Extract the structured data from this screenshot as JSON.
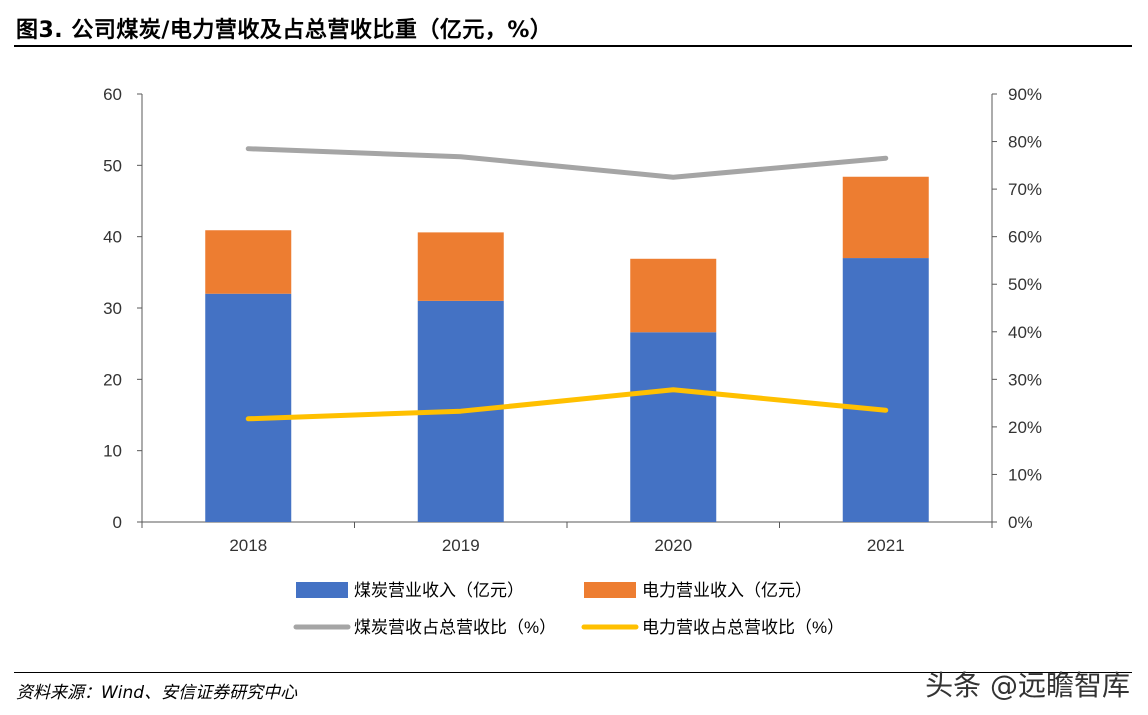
{
  "header": {
    "title": "图3. 公司煤炭/电力营收及占总营收比重（亿元，%）"
  },
  "chart_data": {
    "type": "bar",
    "stacked": true,
    "categories": [
      "2018",
      "2019",
      "2020",
      "2021"
    ],
    "series": [
      {
        "name": "煤炭营业收入（亿元）",
        "kind": "bar",
        "axis": "left",
        "color": "#4472C4",
        "values": [
          32.0,
          31.0,
          26.6,
          37.0
        ]
      },
      {
        "name": "电力营业收入（亿元）",
        "kind": "bar",
        "axis": "left",
        "color": "#ED7D31",
        "values": [
          8.9,
          9.6,
          10.3,
          11.4
        ]
      },
      {
        "name": "煤炭营收占总营收比（%）",
        "kind": "line",
        "axis": "right",
        "color": "#A5A5A5",
        "values": [
          78.5,
          76.8,
          72.5,
          76.5
        ]
      },
      {
        "name": "电力营收占总营收比（%）",
        "kind": "line",
        "axis": "right",
        "color": "#FFC000",
        "values": [
          21.7,
          23.3,
          27.8,
          23.5
        ]
      }
    ],
    "y_left": {
      "ylim": [
        0,
        60
      ],
      "ticks": [
        0,
        10,
        20,
        30,
        40,
        50,
        60
      ],
      "tick_labels": [
        "0",
        "10",
        "20",
        "30",
        "40",
        "50",
        "60"
      ]
    },
    "y_right": {
      "ylim": [
        0,
        90
      ],
      "ticks": [
        0,
        10,
        20,
        30,
        40,
        50,
        60,
        70,
        80,
        90
      ],
      "tick_labels": [
        "0%",
        "10%",
        "20%",
        "30%",
        "40%",
        "50%",
        "60%",
        "70%",
        "80%",
        "90%"
      ]
    },
    "grid": false,
    "legend_position": "bottom"
  },
  "footer": {
    "source": "资料来源：Wind、安信证券研究中心",
    "watermark": "头条 @远瞻智库"
  }
}
